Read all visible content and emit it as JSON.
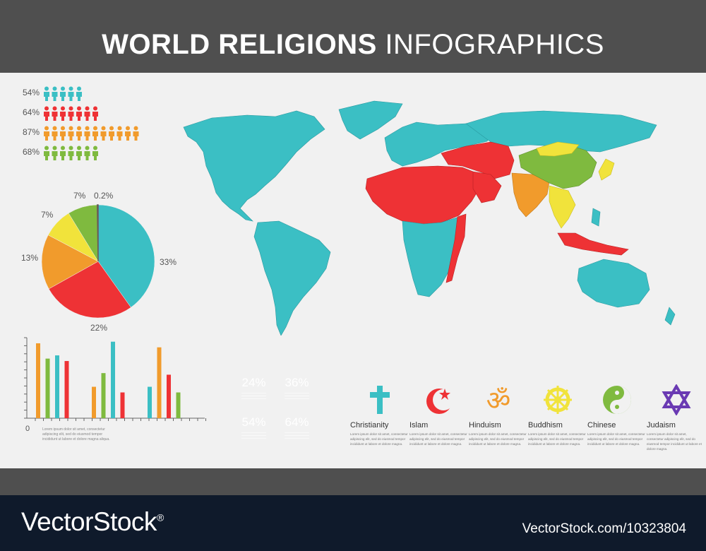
{
  "header": {
    "title_bold": "WORLD RELIGIONS",
    "title_light": "INFOGRAPHICS"
  },
  "footer": {
    "brand": "VectorStock",
    "registered_mark": "®",
    "image_id": "VectorStock.com/10323804"
  },
  "people_rows": [
    {
      "percent": "54%",
      "color": "#3bbfc4",
      "count": 5
    },
    {
      "percent": "64%",
      "color": "#ee3235",
      "count": 7
    },
    {
      "percent": "87%",
      "color": "#f19b2c",
      "count": 12
    },
    {
      "percent": "68%",
      "color": "#7fba3f",
      "count": 7
    }
  ],
  "pie": {
    "type": "pie",
    "slices": [
      {
        "label": "33%",
        "value": 33,
        "color": "#3bbfc4"
      },
      {
        "label": "22%",
        "value": 22,
        "color": "#ee3235"
      },
      {
        "label": "13%",
        "value": 13,
        "color": "#f19b2c"
      },
      {
        "label": "7%",
        "value": 7,
        "color": "#f1e33b"
      },
      {
        "label": "7%",
        "value": 7,
        "color": "#7fba3f"
      },
      {
        "label": "0.2%",
        "value": 0.2,
        "color": "#6a5a5a"
      }
    ]
  },
  "chart_data": {
    "type": "bar",
    "axis_zero_label": "0",
    "groups": [
      {
        "values": [
          0.93,
          0.74,
          0.78,
          0.71
        ],
        "colors": [
          "#f19b2c",
          "#7fba3f",
          "#3bbfc4",
          "#ee3235"
        ]
      },
      {
        "values": [
          0.39,
          0.56,
          0.95,
          0.32
        ],
        "colors": [
          "#f19b2c",
          "#7fba3f",
          "#3bbfc4",
          "#ee3235"
        ]
      },
      {
        "values": [
          0.39,
          0.88,
          0.54,
          0.32
        ],
        "colors": [
          "#3bbfc4",
          "#f19b2c",
          "#ee3235",
          "#7fba3f"
        ]
      }
    ],
    "notes": [
      "Lorem ipsum dolor sit amet, consectetur",
      "adipiscing elit, sed do eiusmod tempor",
      "incididunt ut labore et dolore magna aliqua."
    ]
  },
  "tiles": [
    {
      "value": "24%",
      "color": "#3bbfc4"
    },
    {
      "value": "36%",
      "color": "#f19b2c"
    },
    {
      "value": "54%",
      "color": "#f1e33b"
    },
    {
      "value": "64%",
      "color": "#7fba3f"
    }
  ],
  "religions": [
    {
      "name": "Christianity",
      "icon": "cross-icon",
      "color": "#3bbfc4"
    },
    {
      "name": "Islam",
      "icon": "crescent-star-icon",
      "color": "#ee3235"
    },
    {
      "name": "Hinduism",
      "icon": "om-icon",
      "color": "#f19b2c"
    },
    {
      "name": "Buddhism",
      "icon": "dharma-wheel-icon",
      "color": "#f1e33b"
    },
    {
      "name": "Chinese",
      "icon": "yin-yang-icon",
      "color": "#7fba3f"
    },
    {
      "name": "Judaism",
      "icon": "star-of-david-icon",
      "color": "#6a3ab3"
    }
  ],
  "lorem_text": "Lorem ipsum dolor sit amet, consectetur adipiscing elit, sed do eiusmod tempor incididunt ut labore et dolore magna.",
  "map_colors": {
    "christianity": "#3bbfc4",
    "islam": "#ee3235",
    "hinduism": "#f19b2c",
    "buddhism": "#f1e33b",
    "chinese": "#7fba3f"
  }
}
